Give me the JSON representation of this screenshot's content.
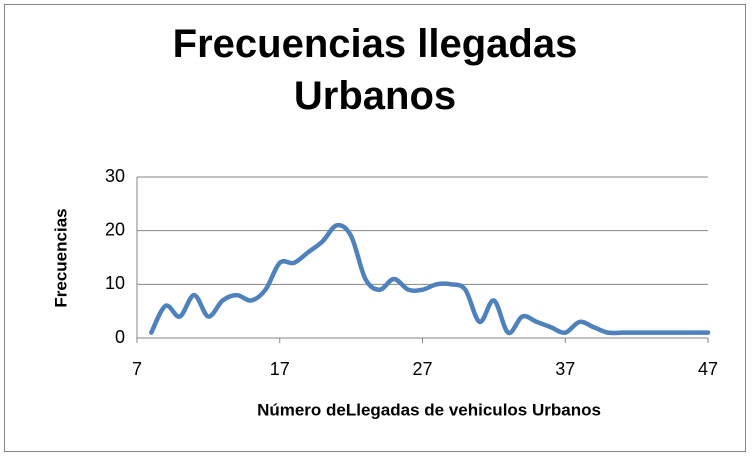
{
  "chart_data": {
    "type": "line",
    "title": "Frecuencias llegadas Urbanos",
    "x_label": "Número deLlegadas de vehiculos Urbanos",
    "y_label": "Frecuencias",
    "x": [
      8,
      9,
      10,
      11,
      12,
      13,
      14,
      15,
      16,
      17,
      18,
      19,
      20,
      21,
      22,
      23,
      24,
      25,
      26,
      27,
      28,
      29,
      30,
      31,
      32,
      33,
      34,
      35,
      36,
      37,
      38,
      39,
      40,
      41,
      42,
      43,
      44,
      45,
      46,
      47
    ],
    "series": [
      {
        "name": "Frecuencias",
        "color": "#4f81bd",
        "values": [
          1,
          6,
          4,
          8,
          4,
          7,
          8,
          7,
          9,
          14,
          14,
          16,
          18,
          21,
          19,
          11,
          9,
          11,
          9,
          9,
          10,
          10,
          9,
          3,
          7,
          1,
          4,
          3,
          2,
          1,
          3,
          2,
          1,
          1,
          1,
          1,
          1,
          1,
          1,
          1
        ]
      }
    ],
    "xlim": [
      7,
      47
    ],
    "xticks": [
      7,
      17,
      27,
      37,
      47
    ],
    "ylim": [
      0,
      30
    ],
    "yticks": [
      0,
      10,
      20,
      30
    ],
    "grid": true
  }
}
